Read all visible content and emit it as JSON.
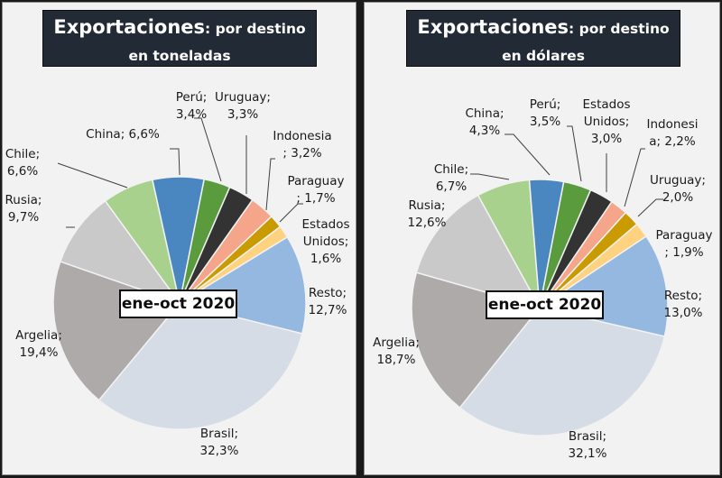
{
  "chart_data": [
    {
      "type": "pie",
      "title": "Exportaciones: por destino en toneladas",
      "title_main": "Exportaciones",
      "title_sub": ": por destino en toneladas",
      "period": "ene-oct 2020",
      "unit": "%",
      "slices": [
        {
          "name": "Brasil",
          "value": 32.3,
          "label": "Brasil; 32,3%",
          "color": "#d6dce5"
        },
        {
          "name": "Argelia",
          "value": 19.4,
          "label": "Argelia; 19,4%",
          "color": "#aeaaaa"
        },
        {
          "name": "Rusia",
          "value": 9.7,
          "label": "Rusia; 9,7%",
          "color": "#c9c9c9"
        },
        {
          "name": "Chile",
          "value": 6.6,
          "label": "Chile; 6,6%",
          "color": "#a9d18e"
        },
        {
          "name": "China",
          "value": 6.6,
          "label": "China; 6,6%",
          "color": "#4a86c0"
        },
        {
          "name": "Perú",
          "value": 3.4,
          "label": "Perú; 3,4%",
          "color": "#5a9c3d"
        },
        {
          "name": "Uruguay",
          "value": 3.3,
          "label": "Uruguay; 3,3%",
          "color": "#333333"
        },
        {
          "name": "Indonesia",
          "value": 3.2,
          "label": "Indonesia ; 3,2%",
          "color": "#f4a58a"
        },
        {
          "name": "Paraguay",
          "value": 1.7,
          "label": "Paraguay ; 1,7%",
          "color": "#c99b00"
        },
        {
          "name": "Estados Unidos",
          "value": 1.6,
          "label": "Estados Unidos; 1,6%",
          "color": "#ffd27f"
        },
        {
          "name": "Resto",
          "value": 12.7,
          "label": "Resto; 12,7%",
          "color": "#94b8e0"
        }
      ],
      "label_lines": [
        [
          "Brasil;",
          "32,3%"
        ],
        [
          "Argelia;",
          "19,4%"
        ],
        [
          "Rusia;",
          "9,7%"
        ],
        [
          "Chile;",
          "6,6%"
        ],
        [
          "China; 6,6%"
        ],
        [
          "Perú;",
          "3,4%"
        ],
        [
          "Uruguay;",
          "3,3%"
        ],
        [
          "Indonesia",
          "; 3,2%"
        ],
        [
          "Paraguay",
          "; 1,7%"
        ],
        [
          "Estados",
          "Unidos;",
          "1,6%"
        ],
        [
          "Resto;",
          "12,7%"
        ]
      ]
    },
    {
      "type": "pie",
      "title": "Exportaciones: por destino en dólares",
      "title_main": "Exportaciones",
      "title_sub": ": por destino en dólares",
      "period": "ene-oct 2020",
      "unit": "%",
      "slices": [
        {
          "name": "Brasil",
          "value": 32.1,
          "label": "Brasil; 32,1%",
          "color": "#d6dce5"
        },
        {
          "name": "Argelia",
          "value": 18.7,
          "label": "Argelia; 18,7%",
          "color": "#aeaaaa"
        },
        {
          "name": "Rusia",
          "value": 12.6,
          "label": "Rusia; 12,6%",
          "color": "#c9c9c9"
        },
        {
          "name": "Chile",
          "value": 6.7,
          "label": "Chile; 6,7%",
          "color": "#a9d18e"
        },
        {
          "name": "China",
          "value": 4.3,
          "label": "China; 4,3%",
          "color": "#4a86c0"
        },
        {
          "name": "Perú",
          "value": 3.5,
          "label": "Perú; 3,5%",
          "color": "#5a9c3d"
        },
        {
          "name": "Estados Unidos",
          "value": 3.0,
          "label": "Estados Unidos; 3,0%",
          "color": "#333333"
        },
        {
          "name": "Indonesia",
          "value": 2.2,
          "label": "Indonesia; 2,2%",
          "color": "#f4a58a"
        },
        {
          "name": "Uruguay",
          "value": 2.0,
          "label": "Uruguay; 2,0%",
          "color": "#c99b00"
        },
        {
          "name": "Paraguay",
          "value": 1.9,
          "label": "Paraguay ; 1,9%",
          "color": "#ffd27f"
        },
        {
          "name": "Resto",
          "value": 13.0,
          "label": "Resto; 13,0%",
          "color": "#94b8e0"
        }
      ],
      "label_lines": [
        [
          "Brasil;",
          "32,1%"
        ],
        [
          "Argelia;",
          "18,7%"
        ],
        [
          "Rusia;",
          "12,6%"
        ],
        [
          "Chile;",
          "6,7%"
        ],
        [
          "China;",
          "4,3%"
        ],
        [
          "Perú;",
          "3,5%"
        ],
        [
          "Estados",
          "Unidos;",
          "3,0%"
        ],
        [
          "Indonesi",
          "a; 2,2%"
        ],
        [
          "Uruguay;",
          "2,0%"
        ],
        [
          "Paraguay",
          "; 1,9%"
        ],
        [
          "Resto;",
          "13,0%"
        ]
      ]
    }
  ]
}
